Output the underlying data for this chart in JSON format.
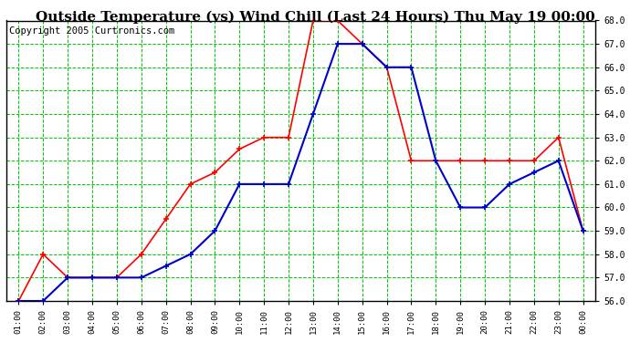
{
  "title": "Outside Temperature (vs) Wind Chill (Last 24 Hours) Thu May 19 00:00",
  "copyright": "Copyright 2005 Curtronics.com",
  "x_labels": [
    "01:00",
    "02:00",
    "03:00",
    "04:00",
    "05:00",
    "06:00",
    "07:00",
    "08:00",
    "09:00",
    "10:00",
    "11:00",
    "12:00",
    "13:00",
    "14:00",
    "15:00",
    "16:00",
    "17:00",
    "18:00",
    "19:00",
    "20:00",
    "21:00",
    "22:00",
    "23:00",
    "00:00"
  ],
  "red_values": [
    56.0,
    58.0,
    57.0,
    57.0,
    57.0,
    58.0,
    59.5,
    61.0,
    61.5,
    62.5,
    63.0,
    63.0,
    68.0,
    68.0,
    67.0,
    66.0,
    62.0,
    62.0,
    62.0,
    62.0,
    62.0,
    62.0,
    63.0,
    59.0
  ],
  "blue_values": [
    56.0,
    56.0,
    57.0,
    57.0,
    57.0,
    57.0,
    57.5,
    58.0,
    59.0,
    61.0,
    61.0,
    61.0,
    64.0,
    67.0,
    67.0,
    66.0,
    66.0,
    62.0,
    60.0,
    60.0,
    61.0,
    61.5,
    62.0,
    59.0
  ],
  "red_color": "#ff0000",
  "blue_color": "#0000cc",
  "bg_color": "#ffffff",
  "grid_color": "#00cc00",
  "ylim": [
    56.0,
    68.0
  ],
  "yticks": [
    56.0,
    57.0,
    58.0,
    59.0,
    60.0,
    61.0,
    62.0,
    63.0,
    64.0,
    65.0,
    66.0,
    67.0,
    68.0
  ],
  "title_fontsize": 11,
  "copyright_fontsize": 7.5
}
